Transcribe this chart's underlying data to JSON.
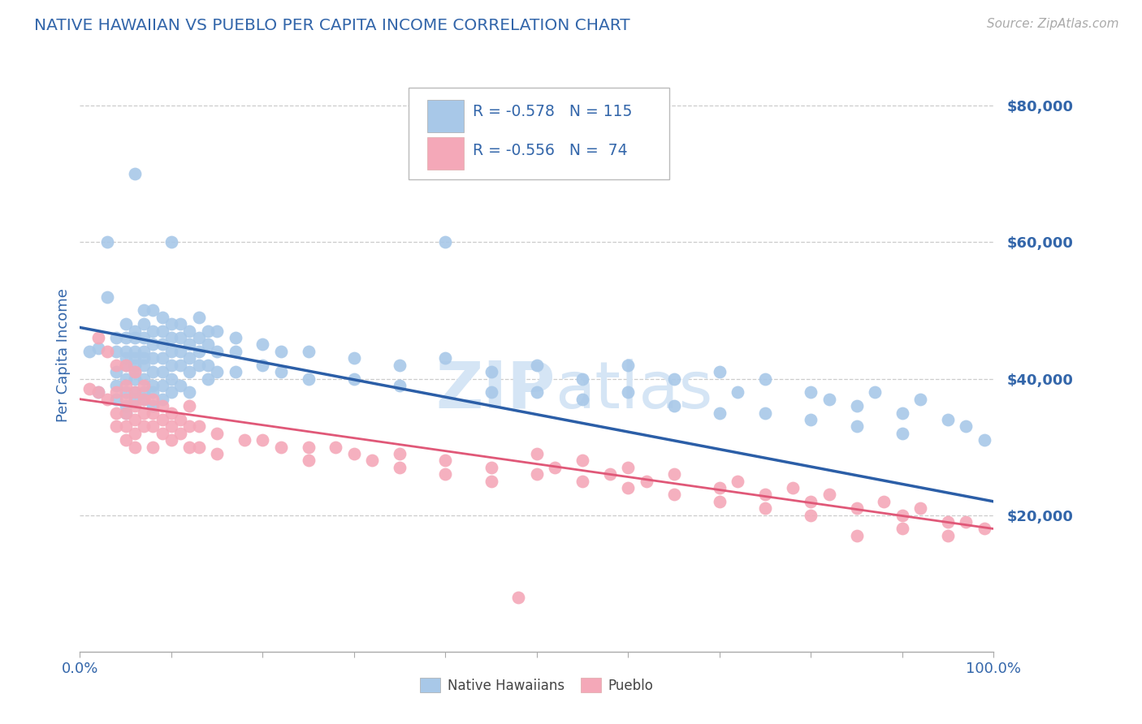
{
  "title": "NATIVE HAWAIIAN VS PUEBLO PER CAPITA INCOME CORRELATION CHART",
  "source": "Source: ZipAtlas.com",
  "ylabel": "Per Capita Income",
  "ylim": [
    0,
    87000
  ],
  "xlim": [
    0.0,
    1.0
  ],
  "blue_color": "#A8C8E8",
  "pink_color": "#F4A8B8",
  "line_blue": "#2B5EA7",
  "line_pink": "#E05878",
  "title_color": "#3366AA",
  "axis_color": "#3366AA",
  "ytick_color": "#3366AA",
  "watermark_color": "#D5E5F5",
  "blue_scatter": [
    [
      0.01,
      44000
    ],
    [
      0.02,
      44500
    ],
    [
      0.02,
      38000
    ],
    [
      0.03,
      60000
    ],
    [
      0.03,
      52000
    ],
    [
      0.04,
      46000
    ],
    [
      0.04,
      44000
    ],
    [
      0.04,
      41000
    ],
    [
      0.04,
      39000
    ],
    [
      0.04,
      37000
    ],
    [
      0.05,
      48000
    ],
    [
      0.05,
      46000
    ],
    [
      0.05,
      44000
    ],
    [
      0.05,
      43000
    ],
    [
      0.05,
      42000
    ],
    [
      0.05,
      40000
    ],
    [
      0.05,
      38000
    ],
    [
      0.05,
      36000
    ],
    [
      0.05,
      35000
    ],
    [
      0.06,
      70000
    ],
    [
      0.06,
      47000
    ],
    [
      0.06,
      46000
    ],
    [
      0.06,
      44000
    ],
    [
      0.06,
      43000
    ],
    [
      0.06,
      42000
    ],
    [
      0.06,
      41000
    ],
    [
      0.06,
      40000
    ],
    [
      0.06,
      38000
    ],
    [
      0.06,
      37000
    ],
    [
      0.07,
      50000
    ],
    [
      0.07,
      48000
    ],
    [
      0.07,
      46000
    ],
    [
      0.07,
      44000
    ],
    [
      0.07,
      43000
    ],
    [
      0.07,
      42000
    ],
    [
      0.07,
      40000
    ],
    [
      0.07,
      38000
    ],
    [
      0.07,
      37000
    ],
    [
      0.08,
      50000
    ],
    [
      0.08,
      47000
    ],
    [
      0.08,
      45000
    ],
    [
      0.08,
      43000
    ],
    [
      0.08,
      41000
    ],
    [
      0.08,
      39000
    ],
    [
      0.08,
      38000
    ],
    [
      0.08,
      36000
    ],
    [
      0.09,
      49000
    ],
    [
      0.09,
      47000
    ],
    [
      0.09,
      45000
    ],
    [
      0.09,
      43000
    ],
    [
      0.09,
      41000
    ],
    [
      0.09,
      39000
    ],
    [
      0.09,
      37000
    ],
    [
      0.1,
      60000
    ],
    [
      0.1,
      48000
    ],
    [
      0.1,
      46000
    ],
    [
      0.1,
      44000
    ],
    [
      0.1,
      42000
    ],
    [
      0.1,
      40000
    ],
    [
      0.1,
      38000
    ],
    [
      0.11,
      48000
    ],
    [
      0.11,
      46000
    ],
    [
      0.11,
      44000
    ],
    [
      0.11,
      42000
    ],
    [
      0.11,
      39000
    ],
    [
      0.12,
      47000
    ],
    [
      0.12,
      45000
    ],
    [
      0.12,
      43000
    ],
    [
      0.12,
      41000
    ],
    [
      0.12,
      38000
    ],
    [
      0.13,
      49000
    ],
    [
      0.13,
      46000
    ],
    [
      0.13,
      44000
    ],
    [
      0.13,
      42000
    ],
    [
      0.14,
      47000
    ],
    [
      0.14,
      45000
    ],
    [
      0.14,
      42000
    ],
    [
      0.14,
      40000
    ],
    [
      0.15,
      47000
    ],
    [
      0.15,
      44000
    ],
    [
      0.15,
      41000
    ],
    [
      0.17,
      46000
    ],
    [
      0.17,
      44000
    ],
    [
      0.17,
      41000
    ],
    [
      0.2,
      45000
    ],
    [
      0.2,
      42000
    ],
    [
      0.22,
      44000
    ],
    [
      0.22,
      41000
    ],
    [
      0.25,
      44000
    ],
    [
      0.25,
      40000
    ],
    [
      0.3,
      43000
    ],
    [
      0.3,
      40000
    ],
    [
      0.35,
      42000
    ],
    [
      0.35,
      39000
    ],
    [
      0.4,
      60000
    ],
    [
      0.4,
      43000
    ],
    [
      0.45,
      41000
    ],
    [
      0.45,
      38000
    ],
    [
      0.5,
      42000
    ],
    [
      0.5,
      38000
    ],
    [
      0.55,
      40000
    ],
    [
      0.55,
      37000
    ],
    [
      0.6,
      42000
    ],
    [
      0.6,
      38000
    ],
    [
      0.65,
      40000
    ],
    [
      0.65,
      36000
    ],
    [
      0.7,
      41000
    ],
    [
      0.7,
      35000
    ],
    [
      0.72,
      38000
    ],
    [
      0.75,
      40000
    ],
    [
      0.75,
      35000
    ],
    [
      0.8,
      38000
    ],
    [
      0.8,
      34000
    ],
    [
      0.82,
      37000
    ],
    [
      0.85,
      36000
    ],
    [
      0.85,
      33000
    ],
    [
      0.87,
      38000
    ],
    [
      0.9,
      35000
    ],
    [
      0.9,
      32000
    ],
    [
      0.92,
      37000
    ],
    [
      0.95,
      34000
    ],
    [
      0.97,
      33000
    ],
    [
      0.99,
      31000
    ]
  ],
  "pink_scatter": [
    [
      0.01,
      38500
    ],
    [
      0.02,
      46000
    ],
    [
      0.02,
      38000
    ],
    [
      0.03,
      44000
    ],
    [
      0.03,
      37000
    ],
    [
      0.04,
      42000
    ],
    [
      0.04,
      38000
    ],
    [
      0.04,
      35000
    ],
    [
      0.04,
      33000
    ],
    [
      0.05,
      42000
    ],
    [
      0.05,
      39000
    ],
    [
      0.05,
      37000
    ],
    [
      0.05,
      35000
    ],
    [
      0.05,
      33000
    ],
    [
      0.05,
      31000
    ],
    [
      0.06,
      41000
    ],
    [
      0.06,
      38000
    ],
    [
      0.06,
      36000
    ],
    [
      0.06,
      34000
    ],
    [
      0.06,
      32000
    ],
    [
      0.06,
      30000
    ],
    [
      0.07,
      39000
    ],
    [
      0.07,
      37000
    ],
    [
      0.07,
      35000
    ],
    [
      0.07,
      33000
    ],
    [
      0.08,
      37000
    ],
    [
      0.08,
      35000
    ],
    [
      0.08,
      33000
    ],
    [
      0.08,
      30000
    ],
    [
      0.09,
      36000
    ],
    [
      0.09,
      34000
    ],
    [
      0.09,
      32000
    ],
    [
      0.1,
      35000
    ],
    [
      0.1,
      33000
    ],
    [
      0.1,
      31000
    ],
    [
      0.11,
      34000
    ],
    [
      0.11,
      32000
    ],
    [
      0.12,
      36000
    ],
    [
      0.12,
      33000
    ],
    [
      0.12,
      30000
    ],
    [
      0.13,
      33000
    ],
    [
      0.13,
      30000
    ],
    [
      0.15,
      32000
    ],
    [
      0.15,
      29000
    ],
    [
      0.18,
      31000
    ],
    [
      0.2,
      31000
    ],
    [
      0.22,
      30000
    ],
    [
      0.25,
      30000
    ],
    [
      0.25,
      28000
    ],
    [
      0.28,
      30000
    ],
    [
      0.3,
      29000
    ],
    [
      0.32,
      28000
    ],
    [
      0.35,
      29000
    ],
    [
      0.35,
      27000
    ],
    [
      0.4,
      28000
    ],
    [
      0.4,
      26000
    ],
    [
      0.45,
      27000
    ],
    [
      0.45,
      25000
    ],
    [
      0.48,
      8000
    ],
    [
      0.5,
      26000
    ],
    [
      0.5,
      29000
    ],
    [
      0.52,
      27000
    ],
    [
      0.55,
      25000
    ],
    [
      0.55,
      28000
    ],
    [
      0.58,
      26000
    ],
    [
      0.6,
      24000
    ],
    [
      0.6,
      27000
    ],
    [
      0.62,
      25000
    ],
    [
      0.65,
      23000
    ],
    [
      0.65,
      26000
    ],
    [
      0.7,
      24000
    ],
    [
      0.7,
      22000
    ],
    [
      0.72,
      25000
    ],
    [
      0.75,
      23000
    ],
    [
      0.75,
      21000
    ],
    [
      0.78,
      24000
    ],
    [
      0.8,
      22000
    ],
    [
      0.8,
      20000
    ],
    [
      0.82,
      23000
    ],
    [
      0.85,
      21000
    ],
    [
      0.85,
      17000
    ],
    [
      0.88,
      22000
    ],
    [
      0.9,
      20000
    ],
    [
      0.9,
      18000
    ],
    [
      0.92,
      21000
    ],
    [
      0.95,
      19000
    ],
    [
      0.95,
      17000
    ],
    [
      0.97,
      19000
    ],
    [
      0.99,
      18000
    ]
  ],
  "blue_line": [
    [
      0.0,
      47500
    ],
    [
      1.0,
      22000
    ]
  ],
  "pink_line": [
    [
      0.0,
      37000
    ],
    [
      1.0,
      18000
    ]
  ],
  "xtick_positions": [
    0.0,
    0.1,
    0.2,
    0.3,
    0.4,
    0.5,
    0.6,
    0.7,
    0.8,
    0.9,
    1.0
  ],
  "ytick_vals": [
    20000,
    40000,
    60000,
    80000
  ],
  "ytick_labels": [
    "$20,000",
    "$40,000",
    "$60,000",
    "$80,000"
  ]
}
